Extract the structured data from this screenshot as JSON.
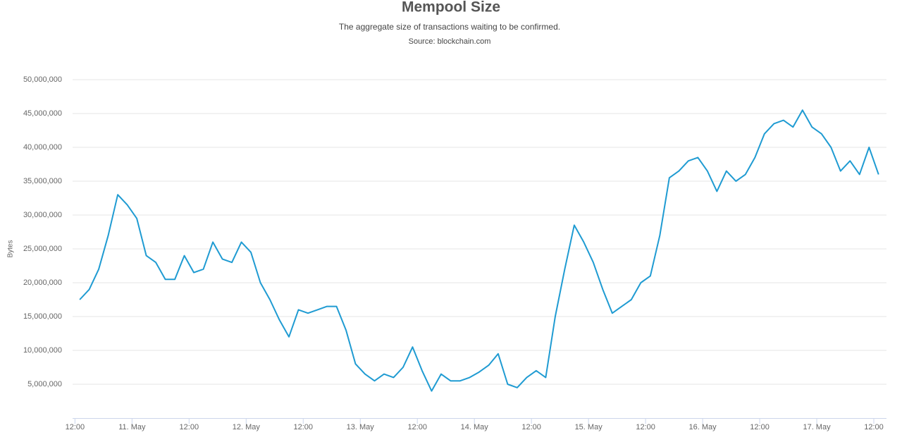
{
  "chart_data": {
    "type": "line",
    "title": "Mempool Size",
    "subtitle": "The aggregate size of transactions waiting to be confirmed.",
    "source": "Source: blockchain.com",
    "y_label": "Bytes",
    "grid": true,
    "x": [
      "10. May 13:00",
      "10. May 15:00",
      "10. May 17:00",
      "10. May 19:00",
      "10. May 21:00",
      "10. May 23:00",
      "11. May 01:00",
      "11. May 03:00",
      "11. May 05:00",
      "11. May 07:00",
      "11. May 09:00",
      "11. May 11:00",
      "11. May 13:00",
      "11. May 15:00",
      "11. May 17:00",
      "11. May 19:00",
      "11. May 21:00",
      "11. May 23:00",
      "12. May 01:00",
      "12. May 03:00",
      "12. May 05:00",
      "12. May 07:00",
      "12. May 09:00",
      "12. May 11:00",
      "12. May 13:00",
      "12. May 15:00",
      "12. May 17:00",
      "12. May 19:00",
      "12. May 21:00",
      "12. May 23:00",
      "13. May 01:00",
      "13. May 03:00",
      "13. May 05:00",
      "13. May 07:00",
      "13. May 09:00",
      "13. May 11:00",
      "13. May 13:00",
      "13. May 15:00",
      "13. May 17:00",
      "13. May 19:00",
      "13. May 21:00",
      "13. May 23:00",
      "14. May 01:00",
      "14. May 03:00",
      "14. May 05:00",
      "14. May 07:00",
      "14. May 09:00",
      "14. May 11:00",
      "14. May 13:00",
      "14. May 15:00",
      "14. May 17:00",
      "14. May 19:00",
      "14. May 21:00",
      "14. May 23:00",
      "15. May 01:00",
      "15. May 03:00",
      "15. May 05:00",
      "15. May 07:00",
      "15. May 09:00",
      "15. May 11:00",
      "15. May 13:00",
      "15. May 15:00",
      "15. May 17:00",
      "15. May 19:00",
      "15. May 21:00",
      "15. May 23:00",
      "16. May 01:00",
      "16. May 03:00",
      "16. May 05:00",
      "16. May 07:00",
      "16. May 09:00",
      "16. May 11:00",
      "16. May 13:00",
      "16. May 15:00",
      "16. May 17:00",
      "16. May 19:00",
      "16. May 21:00",
      "16. May 23:00",
      "17. May 01:00",
      "17. May 03:00",
      "17. May 05:00",
      "17. May 07:00",
      "17. May 09:00",
      "17. May 11:00",
      "17. May 13:00"
    ],
    "series": [
      {
        "name": "Mempool Size",
        "color": "#1f9bd2",
        "values": [
          17500000,
          19000000,
          22000000,
          27000000,
          33000000,
          31500000,
          29500000,
          24000000,
          23000000,
          20500000,
          20500000,
          24000000,
          21500000,
          22000000,
          26000000,
          23500000,
          23000000,
          26000000,
          24500000,
          20000000,
          17500000,
          14500000,
          12000000,
          16000000,
          15500000,
          16000000,
          16500000,
          16500000,
          13000000,
          8000000,
          6500000,
          5500000,
          6500000,
          6000000,
          7500000,
          10500000,
          7000000,
          4000000,
          6500000,
          5500000,
          5500000,
          6000000,
          6800000,
          7800000,
          9500000,
          5000000,
          4500000,
          6000000,
          7000000,
          6000000,
          15000000,
          22000000,
          28500000,
          26000000,
          23000000,
          19000000,
          15500000,
          16500000,
          17500000,
          20000000,
          21000000,
          27000000,
          35500000,
          36500000,
          38000000,
          38500000,
          36500000,
          33500000,
          36500000,
          35000000,
          36000000,
          38500000,
          42000000,
          43500000,
          44000000,
          43000000,
          45500000,
          43000000,
          42000000,
          40000000,
          36500000,
          38000000,
          36000000,
          40000000,
          36000000
        ]
      }
    ],
    "xlim": [
      "10. May 11:30",
      "17. May 14:40"
    ],
    "xticks": [
      {
        "value": "10. May 12:00",
        "label": "12:00"
      },
      {
        "value": "11. May 00:00",
        "label": "11. May"
      },
      {
        "value": "11. May 12:00",
        "label": "12:00"
      },
      {
        "value": "12. May 00:00",
        "label": "12. May"
      },
      {
        "value": "12. May 12:00",
        "label": "12:00"
      },
      {
        "value": "13. May 00:00",
        "label": "13. May"
      },
      {
        "value": "13. May 12:00",
        "label": "12:00"
      },
      {
        "value": "14. May 00:00",
        "label": "14. May"
      },
      {
        "value": "14. May 12:00",
        "label": "12:00"
      },
      {
        "value": "15. May 00:00",
        "label": "15. May"
      },
      {
        "value": "15. May 12:00",
        "label": "12:00"
      },
      {
        "value": "16. May 00:00",
        "label": "16. May"
      },
      {
        "value": "16. May 12:00",
        "label": "12:00"
      },
      {
        "value": "17. May 00:00",
        "label": "17. May"
      },
      {
        "value": "17. May 12:00",
        "label": "12:00"
      }
    ],
    "ylim": [
      0,
      50000000
    ],
    "yticks": [
      {
        "value": 5000000,
        "label": "5,000,000"
      },
      {
        "value": 10000000,
        "label": "10,000,000"
      },
      {
        "value": 15000000,
        "label": "15,000,000"
      },
      {
        "value": 20000000,
        "label": "20,000,000"
      },
      {
        "value": 25000000,
        "label": "25,000,000"
      },
      {
        "value": 30000000,
        "label": "30,000,000"
      },
      {
        "value": 35000000,
        "label": "35,000,000"
      },
      {
        "value": 40000000,
        "label": "40,000,000"
      },
      {
        "value": 45000000,
        "label": "45,000,000"
      },
      {
        "value": 50000000,
        "label": "50,000,000"
      }
    ]
  }
}
